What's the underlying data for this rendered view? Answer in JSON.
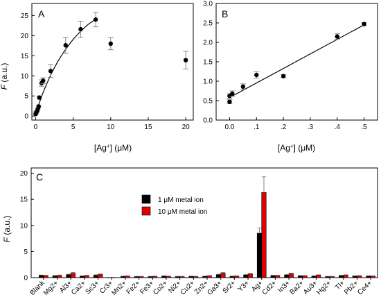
{
  "chart_data": [
    {
      "panel_label": "A",
      "type": "scatter",
      "xlabel": "[Ag+] (μM)",
      "ylabel": "F (a.u.)",
      "xlim": [
        -0.5,
        21
      ],
      "ylim": [
        -1,
        28
      ],
      "xticks": [
        0,
        5,
        10,
        15,
        20
      ],
      "yticks": [
        0,
        5,
        10,
        15,
        20,
        25
      ],
      "points": [
        {
          "x": 0.0,
          "y": 0.5,
          "err": 0.2
        },
        {
          "x": 0.05,
          "y": 0.8,
          "err": 0.2
        },
        {
          "x": 0.1,
          "y": 1.0,
          "err": 0.2
        },
        {
          "x": 0.2,
          "y": 1.3,
          "err": 0.2
        },
        {
          "x": 0.3,
          "y": 1.8,
          "err": 0.2
        },
        {
          "x": 0.4,
          "y": 2.4,
          "err": 0.3
        },
        {
          "x": 0.5,
          "y": 4.6,
          "err": 0.4
        },
        {
          "x": 0.8,
          "y": 8.2,
          "err": 0.8
        },
        {
          "x": 1.0,
          "y": 8.8,
          "err": 0.7
        },
        {
          "x": 2.0,
          "y": 11.2,
          "err": 1.6
        },
        {
          "x": 4.0,
          "y": 17.6,
          "err": 2.0
        },
        {
          "x": 6.0,
          "y": 21.6,
          "err": 2.0
        },
        {
          "x": 8.0,
          "y": 24.0,
          "err": 1.8
        },
        {
          "x": 10.0,
          "y": 18.0,
          "err": 1.5
        },
        {
          "x": 20.0,
          "y": 13.9,
          "err": 2.2
        }
      ],
      "fit_curve": {
        "x": [
          0,
          0.25,
          0.5,
          0.75,
          1,
          1.5,
          2,
          2.5,
          3,
          3.5,
          4,
          5,
          6,
          7,
          8
        ],
        "y": [
          0.5,
          1.9,
          3.3,
          4.6,
          5.9,
          8.1,
          10.2,
          12.0,
          13.7,
          15.2,
          16.6,
          19.1,
          21.1,
          22.8,
          24.1
        ]
      }
    },
    {
      "panel_label": "B",
      "type": "scatter",
      "xlabel": "[Ag+] (μM)",
      "ylabel": "",
      "xlim": [
        -0.05,
        0.55
      ],
      "ylim": [
        0,
        3.0
      ],
      "xticks": [
        0.0,
        0.1,
        0.2,
        0.3,
        0.4,
        0.5
      ],
      "xtick_labels": [
        "0.0",
        ".1",
        ".2",
        ".3",
        ".4",
        ".5"
      ],
      "yticks": [
        0.0,
        0.5,
        1.0,
        1.5,
        2.0,
        2.5,
        3.0
      ],
      "ytick_labels": [
        "0.0",
        "0.5",
        "1.0",
        "1.5",
        "2.0",
        "2.5",
        "3.0"
      ],
      "points": [
        {
          "x": 0.0,
          "y": 0.47,
          "err": 0.05
        },
        {
          "x": 0.0,
          "y": 0.62,
          "err": 0.06
        },
        {
          "x": 0.01,
          "y": 0.68,
          "err": 0.07
        },
        {
          "x": 0.05,
          "y": 0.86,
          "err": 0.07
        },
        {
          "x": 0.1,
          "y": 1.16,
          "err": 0.08
        },
        {
          "x": 0.2,
          "y": 1.13,
          "err": 0.04
        },
        {
          "x": 0.4,
          "y": 2.15,
          "err": 0.07
        },
        {
          "x": 0.5,
          "y": 2.47,
          "err": 0.04
        }
      ],
      "fit_line": {
        "x": [
          0.0,
          0.5
        ],
        "y": [
          0.58,
          2.45
        ]
      }
    },
    {
      "panel_label": "C",
      "type": "bar",
      "xlabel": "",
      "ylabel": "F (a.u.)",
      "ylim": [
        0,
        21
      ],
      "yticks": [
        0,
        5,
        10,
        15,
        20
      ],
      "categories": [
        "Blank",
        "Mg2+",
        "Al3+",
        "Ca2+",
        "Sc3+",
        "Cr3+",
        "Mn2+",
        "Fe2+",
        "Fe3+",
        "Co2+",
        "Ni2+",
        "Cu2+",
        "Zn2+",
        "Ga3+",
        "Sr2+",
        "Y3+",
        "Ag+",
        "Cd2+",
        "In3+",
        "Ba2+",
        "Au3+",
        "Hg2+",
        "Tl+",
        "Pb2+",
        "Ce4+"
      ],
      "series": [
        {
          "name": "1 μM metal ion",
          "color": "#000000",
          "values": [
            0.45,
            0.35,
            0.55,
            0.3,
            0.45,
            0.05,
            0.25,
            0.2,
            0.2,
            0.3,
            0.2,
            0.25,
            0.25,
            0.55,
            0.25,
            0.5,
            8.5,
            0.4,
            0.5,
            0.35,
            0.3,
            0.2,
            0.4,
            0.3,
            0.3
          ],
          "errors": [
            0.05,
            0.05,
            0.1,
            0.05,
            0.1,
            0.02,
            0.05,
            0.05,
            0.05,
            0.05,
            0.05,
            0.05,
            0.05,
            0.1,
            0.05,
            0.1,
            1.0,
            0.05,
            0.1,
            0.05,
            0.05,
            0.05,
            0.05,
            0.05,
            0.05
          ]
        },
        {
          "name": "10 μM metal ion",
          "color": "#e00000",
          "values": [
            0.4,
            0.45,
            0.85,
            0.4,
            0.6,
            0.05,
            0.3,
            0.2,
            0.25,
            0.25,
            0.2,
            0.2,
            0.35,
            0.85,
            0.3,
            0.7,
            16.3,
            0.4,
            0.75,
            0.35,
            0.5,
            0.2,
            0.5,
            0.35,
            0.3
          ],
          "errors": [
            0.05,
            0.05,
            0.15,
            0.05,
            0.1,
            0.02,
            0.05,
            0.05,
            0.05,
            0.05,
            0.05,
            0.05,
            0.05,
            0.15,
            0.05,
            0.1,
            3.0,
            0.05,
            0.1,
            0.05,
            0.05,
            0.05,
            0.05,
            0.05,
            0.05
          ]
        }
      ],
      "legend": "top-center"
    }
  ]
}
